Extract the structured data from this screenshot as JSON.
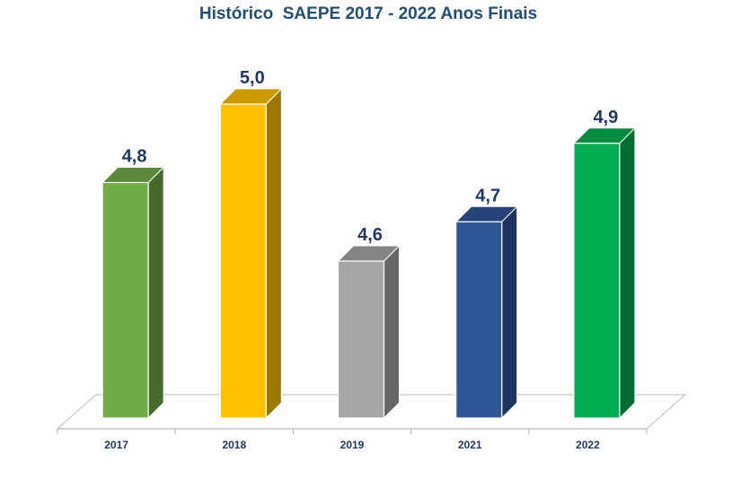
{
  "chart_data": {
    "type": "bar",
    "title": "Histórico  SAEPE 2017 - 2022 Anos Finais",
    "categories": [
      "2017",
      "2018",
      "2019",
      "2021",
      "2022"
    ],
    "values": [
      4.8,
      5.0,
      4.6,
      4.7,
      4.9
    ],
    "value_labels": [
      "4,8",
      "5,0",
      "4,6",
      "4,7",
      "4,9"
    ],
    "colors": [
      "#70ad47",
      "#ffc000",
      "#a5a5a5",
      "#2f5597",
      "#00b050"
    ],
    "xlabel": "",
    "ylabel": "",
    "ylim": [
      4.2,
      5.0
    ],
    "grid": false,
    "legend": "none"
  }
}
